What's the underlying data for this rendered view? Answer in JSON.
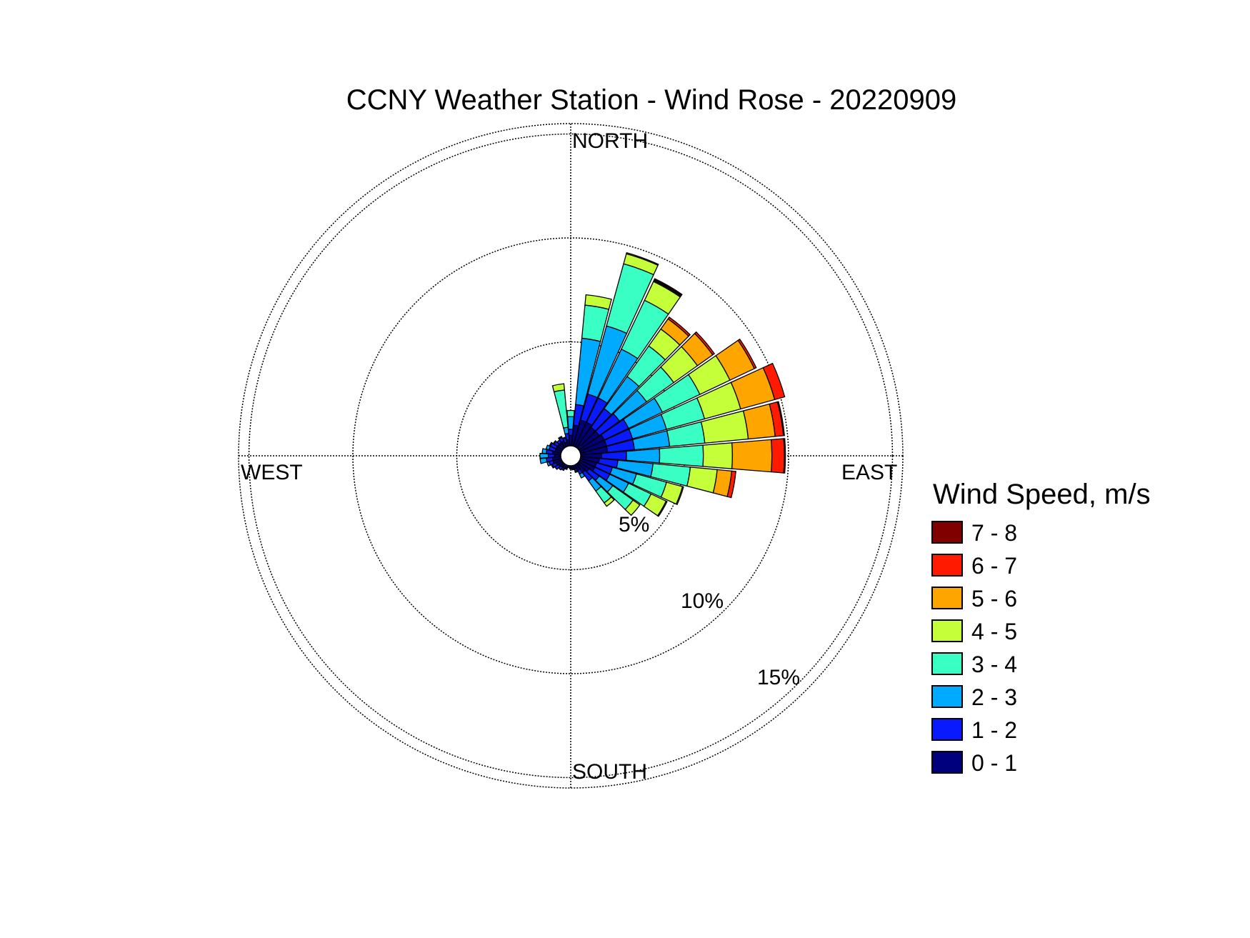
{
  "chart_data": {
    "type": "wind-rose",
    "title": "CCNY Weather Station - Wind Rose - 20220909",
    "directions": [
      "NORTH",
      "EAST",
      "SOUTH",
      "WEST"
    ],
    "ring_labels": [
      "5%",
      "10%",
      "15%"
    ],
    "rings_percent": [
      5,
      10,
      15
    ],
    "max_percent": 15.5,
    "grid": true,
    "legend": {
      "title": "Wind Speed, m/s",
      "placement": "right",
      "bins": [
        {
          "label": "7 - 8",
          "color": "#800000"
        },
        {
          "label": "6 - 7",
          "color": "#ff1a00"
        },
        {
          "label": "5 - 6",
          "color": "#ffa500"
        },
        {
          "label": "4 - 5",
          "color": "#c5ff3a"
        },
        {
          "label": "3 - 4",
          "color": "#3affc5"
        },
        {
          "label": "2 - 3",
          "color": "#00aaff"
        },
        {
          "label": "1 - 2",
          "color": "#0a1aff"
        },
        {
          "label": "0 - 1",
          "color": "#00007f"
        }
      ]
    },
    "sector_width_deg": 10,
    "speed_bin_order": [
      "0 - 1",
      "1 - 2",
      "2 - 3",
      "3 - 4",
      "4 - 5",
      "5 - 6",
      "6 - 7",
      "7 - 8"
    ],
    "series": [
      {
        "direction_deg": 0,
        "cumulative_percent": [
          0.5,
          0.8,
          1.4,
          1.7
        ]
      },
      {
        "direction_deg": 10,
        "cumulative_percent": [
          1.0,
          2.0,
          5.2,
          6.8,
          7.3
        ]
      },
      {
        "direction_deg": 20,
        "cumulative_percent": [
          1.3,
          2.6,
          6.0,
          9.1,
          9.6,
          9.65
        ]
      },
      {
        "direction_deg": 30,
        "cumulative_percent": [
          1.3,
          2.6,
          5.2,
          7.8,
          8.8,
          8.85,
          8.9,
          8.95
        ]
      },
      {
        "direction_deg": 40,
        "cumulative_percent": [
          1.2,
          2.3,
          4.2,
          6.0,
          7.0,
          7.6,
          7.7
        ]
      },
      {
        "direction_deg": 50,
        "cumulative_percent": [
          1.2,
          2.4,
          4.0,
          5.6,
          7.0,
          7.9,
          8.0
        ]
      },
      {
        "direction_deg": 60,
        "cumulative_percent": [
          1.3,
          2.6,
          4.4,
          6.4,
          8.0,
          9.3,
          9.4
        ]
      },
      {
        "direction_deg": 70,
        "cumulative_percent": [
          1.3,
          2.6,
          4.3,
          6.2,
          8.0,
          9.7,
          10.2
        ]
      },
      {
        "direction_deg": 80,
        "cumulative_percent": [
          1.3,
          2.6,
          4.3,
          6.0,
          8.1,
          9.4,
          9.8,
          9.85
        ]
      },
      {
        "direction_deg": 90,
        "cumulative_percent": [
          1.0,
          2.2,
          3.8,
          5.9,
          7.3,
          9.2,
          9.8,
          9.85
        ]
      },
      {
        "direction_deg": 100,
        "cumulative_percent": [
          0.9,
          1.8,
          3.5,
          5.3,
          6.6,
          7.3,
          7.5
        ]
      },
      {
        "direction_deg": 110,
        "cumulative_percent": [
          0.8,
          1.6,
          2.8,
          4.3,
          5.1,
          5.15
        ]
      },
      {
        "direction_deg": 120,
        "cumulative_percent": [
          0.8,
          1.6,
          2.6,
          3.8,
          4.6,
          4.65
        ]
      },
      {
        "direction_deg": 130,
        "cumulative_percent": [
          0.6,
          1.2,
          2.0,
          3.2,
          3.6
        ]
      },
      {
        "direction_deg": 140,
        "cumulative_percent": [
          0.5,
          1.0,
          1.6,
          2.3,
          2.5
        ]
      },
      {
        "direction_deg": 150,
        "cumulative_percent": [
          0.3,
          0.5,
          0.7
        ]
      },
      {
        "direction_deg": 160,
        "cumulative_percent": [
          0.2,
          0.3,
          0.35
        ]
      },
      {
        "direction_deg": 170,
        "cumulative_percent": [
          0.15,
          0.2
        ]
      },
      {
        "direction_deg": 180,
        "cumulative_percent": [
          0.1,
          0.15
        ]
      },
      {
        "direction_deg": 190,
        "cumulative_percent": [
          0.1
        ]
      },
      {
        "direction_deg": 200,
        "cumulative_percent": [
          0.15,
          0.2
        ]
      },
      {
        "direction_deg": 210,
        "cumulative_percent": [
          0.2,
          0.3
        ]
      },
      {
        "direction_deg": 220,
        "cumulative_percent": [
          0.2,
          0.35
        ]
      },
      {
        "direction_deg": 230,
        "cumulative_percent": [
          0.25,
          0.45
        ]
      },
      {
        "direction_deg": 240,
        "cumulative_percent": [
          0.3,
          0.5,
          0.55
        ]
      },
      {
        "direction_deg": 250,
        "cumulative_percent": [
          0.4,
          0.6,
          0.7
        ]
      },
      {
        "direction_deg": 260,
        "cumulative_percent": [
          0.4,
          0.7,
          1.0
        ]
      },
      {
        "direction_deg": 270,
        "cumulative_percent": [
          0.3,
          0.6,
          1.0
        ]
      },
      {
        "direction_deg": 280,
        "cumulative_percent": [
          0.4,
          0.7,
          0.9
        ]
      },
      {
        "direction_deg": 290,
        "cumulative_percent": [
          0.3,
          0.6,
          0.75
        ]
      },
      {
        "direction_deg": 300,
        "cumulative_percent": [
          0.3,
          0.6,
          0.65
        ]
      },
      {
        "direction_deg": 310,
        "cumulative_percent": [
          0.3,
          0.5,
          0.55
        ]
      },
      {
        "direction_deg": 320,
        "cumulative_percent": [
          0.3,
          0.45
        ]
      },
      {
        "direction_deg": 330,
        "cumulative_percent": [
          0.3,
          0.5,
          0.55
        ]
      },
      {
        "direction_deg": 340,
        "cumulative_percent": [
          0.2,
          0.4,
          0.45
        ]
      },
      {
        "direction_deg": 350,
        "cumulative_percent": [
          0.3,
          0.6,
          0.9,
          2.7,
          3.0
        ]
      }
    ]
  }
}
